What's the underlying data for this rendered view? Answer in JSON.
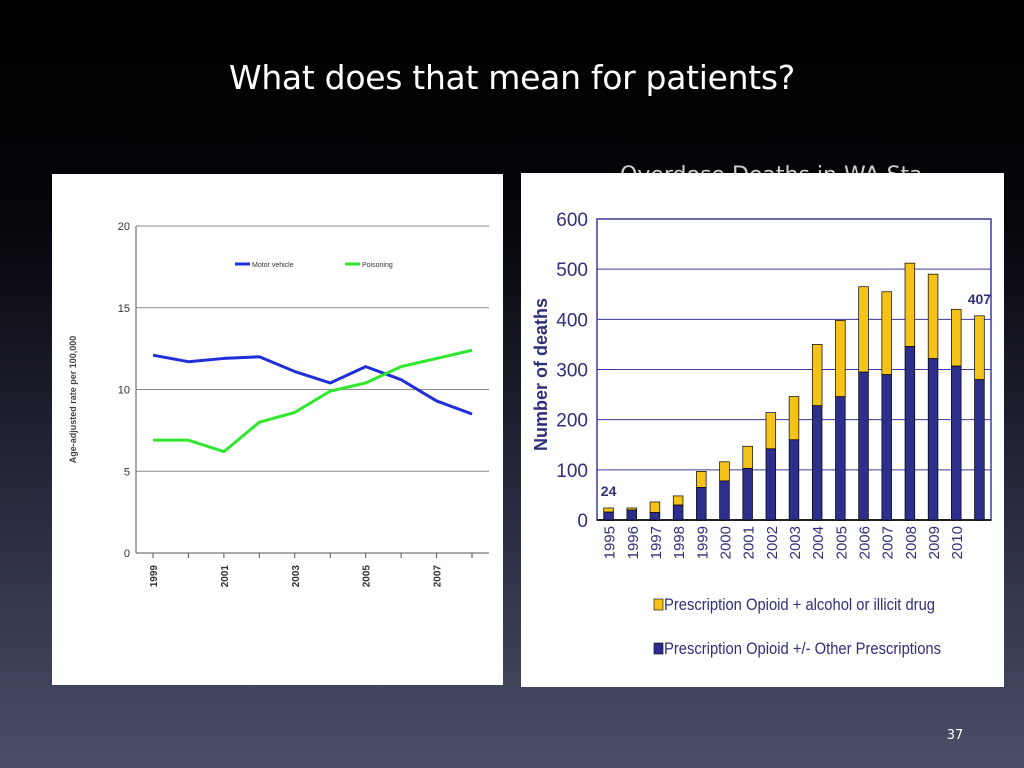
{
  "slide": {
    "title": "What does that mean for patients?",
    "behind_text": "Overdose Deaths in WA State",
    "page_number": "37",
    "background": [
      "#000000",
      "#4a4f68"
    ]
  },
  "chart_data": [
    {
      "type": "line",
      "ylabel": "Age-adjusted rate per 100,000",
      "ylim": [
        0,
        20
      ],
      "yticks": [
        0,
        5,
        10,
        15,
        20
      ],
      "x": [
        1999,
        2000,
        2001,
        2002,
        2003,
        2004,
        2005,
        2006,
        2007,
        2008
      ],
      "xtick_labels": [
        "1999",
        "2001",
        "2003",
        "2005",
        "2007"
      ],
      "grid": true,
      "legend_placement": "top-center",
      "series": [
        {
          "name": "Motor vehicle",
          "color": "#1f2fd8",
          "values": [
            12.1,
            11.7,
            11.9,
            12.0,
            11.1,
            10.4,
            11.4,
            10.6,
            9.3,
            8.5
          ]
        },
        {
          "name": "Poisoning",
          "color": "#2ee82e",
          "values": [
            6.9,
            6.9,
            6.2,
            8.0,
            8.6,
            9.9,
            10.4,
            11.4,
            11.9,
            12.4
          ]
        }
      ]
    },
    {
      "type": "bar",
      "stacked": true,
      "ylabel": "Number of deaths",
      "ylim": [
        0,
        600
      ],
      "yticks": [
        0,
        100,
        200,
        300,
        400,
        500,
        600
      ],
      "categories": [
        "1995",
        "1996",
        "1997",
        "1998",
        "1999",
        "2000",
        "2001",
        "2002",
        "2003",
        "2004",
        "2005",
        "2006",
        "2007",
        "2008",
        "2009",
        "2010",
        ""
      ],
      "grid": true,
      "legend_placement": "bottom",
      "series": [
        {
          "name": "Prescription Opioid +/- Other Prescriptions",
          "color": "#2e2e8c",
          "values": [
            16,
            20,
            15,
            30,
            65,
            78,
            103,
            142,
            160,
            228,
            246,
            295,
            290,
            346,
            322,
            307,
            280
          ]
        },
        {
          "name": "Prescription Opioid + alcohol or illicit drug",
          "color": "#f5c21a",
          "values": [
            8,
            4,
            21,
            18,
            32,
            38,
            44,
            72,
            86,
            122,
            152,
            170,
            165,
            166,
            168,
            113,
            127
          ]
        }
      ],
      "annotations": [
        {
          "label": "24",
          "category_index": 0
        },
        {
          "label": "407",
          "category_index": 16
        }
      ]
    }
  ]
}
